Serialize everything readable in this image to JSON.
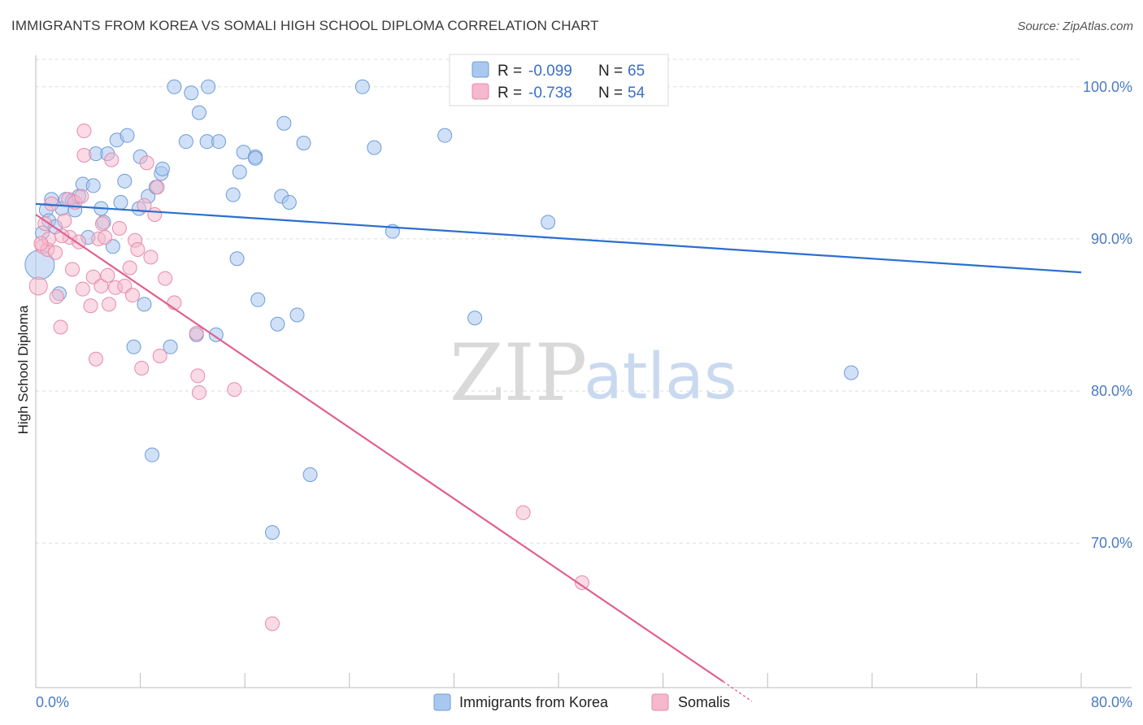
{
  "header": {
    "title": "IMMIGRANTS FROM KOREA VS SOMALI HIGH SCHOOL DIPLOMA CORRELATION CHART",
    "source": "Source: ZipAtlas.com"
  },
  "watermark": {
    "zip": "ZIP",
    "atlas": "atlas"
  },
  "legend": {
    "rows": [
      {
        "r_label": "R =",
        "r_value": "-0.099",
        "n_label": "N =",
        "n_value": "65"
      },
      {
        "r_label": "R =",
        "r_value": "-0.738",
        "n_label": "N =",
        "n_value": "54"
      }
    ]
  },
  "bottom_legend": {
    "korea": "Immigrants from Korea",
    "somalis": "Somalis"
  },
  "colors": {
    "korea_fill": "#a9c8f0",
    "korea_stroke": "#6d9bd8",
    "korea_line": "#2a6fd0",
    "somalis_fill": "#f5b8cc",
    "somalis_stroke": "#e88aa8",
    "somalis_line": "#e0608f",
    "tick_label": "#4a7bc4",
    "grid": "#dddddd"
  },
  "chart_data": {
    "type": "scatter",
    "title": "IMMIGRANTS FROM KOREA VS SOMALI HIGH SCHOOL DIPLOMA CORRELATION CHART",
    "ylabel": "High School Diploma",
    "xlabel": "",
    "xlim": [
      0,
      80
    ],
    "ylim": [
      60.5,
      102.5
    ],
    "x_tick_labels": [
      "0.0%",
      "80.0%"
    ],
    "y_ticks": [
      70,
      80,
      90,
      100
    ],
    "y_tick_labels": [
      "70.0%",
      "80.0%",
      "90.0%",
      "100.0%"
    ],
    "grid": true,
    "legend_position": "top-center",
    "series": [
      {
        "name": "Immigrants from Korea",
        "R": -0.099,
        "N": 65,
        "trend": {
          "x": [
            0,
            80
          ],
          "y": [
            92.3,
            87.8
          ]
        },
        "points": [
          [
            0.3,
            88.3
          ],
          [
            0.5,
            90.4
          ],
          [
            0.8,
            91.9
          ],
          [
            1.0,
            91.2
          ],
          [
            1.2,
            92.6
          ],
          [
            1.5,
            90.8
          ],
          [
            1.8,
            86.4
          ],
          [
            2.0,
            92.0
          ],
          [
            2.3,
            92.6
          ],
          [
            2.8,
            92.5
          ],
          [
            3.0,
            91.9
          ],
          [
            3.3,
            92.8
          ],
          [
            3.6,
            93.6
          ],
          [
            4.0,
            90.1
          ],
          [
            4.4,
            93.5
          ],
          [
            4.6,
            95.6
          ],
          [
            5.0,
            92.0
          ],
          [
            5.2,
            91.1
          ],
          [
            5.5,
            95.6
          ],
          [
            5.9,
            89.5
          ],
          [
            6.2,
            96.5
          ],
          [
            6.5,
            92.4
          ],
          [
            6.8,
            93.8
          ],
          [
            7.0,
            96.8
          ],
          [
            7.5,
            82.9
          ],
          [
            7.9,
            92.0
          ],
          [
            8.0,
            95.4
          ],
          [
            8.3,
            85.7
          ],
          [
            8.6,
            92.8
          ],
          [
            8.9,
            75.8
          ],
          [
            9.2,
            93.4
          ],
          [
            9.6,
            94.3
          ],
          [
            9.7,
            94.6
          ],
          [
            10.3,
            82.9
          ],
          [
            10.6,
            100.0
          ],
          [
            11.5,
            96.4
          ],
          [
            11.9,
            99.6
          ],
          [
            12.3,
            83.7
          ],
          [
            12.5,
            98.3
          ],
          [
            13.2,
            100.0
          ],
          [
            13.1,
            96.4
          ],
          [
            13.8,
            83.7
          ],
          [
            14.0,
            96.4
          ],
          [
            15.1,
            92.9
          ],
          [
            15.4,
            88.7
          ],
          [
            15.6,
            94.4
          ],
          [
            15.9,
            95.7
          ],
          [
            16.8,
            95.4
          ],
          [
            16.8,
            95.3
          ],
          [
            17.0,
            86.0
          ],
          [
            18.1,
            70.7
          ],
          [
            18.5,
            84.4
          ],
          [
            18.8,
            92.8
          ],
          [
            19.0,
            97.6
          ],
          [
            19.4,
            92.4
          ],
          [
            20.0,
            85.0
          ],
          [
            20.5,
            96.3
          ],
          [
            21.0,
            74.5
          ],
          [
            25.0,
            100.0
          ],
          [
            25.9,
            96.0
          ],
          [
            27.3,
            90.5
          ],
          [
            31.3,
            96.8
          ],
          [
            33.6,
            84.8
          ],
          [
            39.2,
            91.1
          ],
          [
            62.4,
            81.2
          ]
        ]
      },
      {
        "name": "Somalis",
        "R": -0.738,
        "N": 54,
        "trend": {
          "x": [
            0,
            52.6
          ],
          "y": [
            91.6,
            60.9
          ]
        },
        "points": [
          [
            0.2,
            86.9
          ],
          [
            0.5,
            89.5
          ],
          [
            0.7,
            91.0
          ],
          [
            0.9,
            89.3
          ],
          [
            1.0,
            90.0
          ],
          [
            1.2,
            92.3
          ],
          [
            1.5,
            89.1
          ],
          [
            1.6,
            86.2
          ],
          [
            1.9,
            84.2
          ],
          [
            2.2,
            91.2
          ],
          [
            2.5,
            92.6
          ],
          [
            2.6,
            90.1
          ],
          [
            2.8,
            88.0
          ],
          [
            3.0,
            92.4
          ],
          [
            3.3,
            89.8
          ],
          [
            3.5,
            92.8
          ],
          [
            3.6,
            86.7
          ],
          [
            3.7,
            97.1
          ],
          [
            3.7,
            95.5
          ],
          [
            4.2,
            85.6
          ],
          [
            4.4,
            87.5
          ],
          [
            4.6,
            82.1
          ],
          [
            4.8,
            90.0
          ],
          [
            5.0,
            86.9
          ],
          [
            5.1,
            91.0
          ],
          [
            5.3,
            90.1
          ],
          [
            5.5,
            87.6
          ],
          [
            5.6,
            85.7
          ],
          [
            5.8,
            95.2
          ],
          [
            6.1,
            86.8
          ],
          [
            6.4,
            90.7
          ],
          [
            6.8,
            86.9
          ],
          [
            7.2,
            88.1
          ],
          [
            7.4,
            86.3
          ],
          [
            7.6,
            89.9
          ],
          [
            7.8,
            89.3
          ],
          [
            8.1,
            81.5
          ],
          [
            8.3,
            92.2
          ],
          [
            8.5,
            95.0
          ],
          [
            8.8,
            88.8
          ],
          [
            9.1,
            91.6
          ],
          [
            9.3,
            93.4
          ],
          [
            9.5,
            82.3
          ],
          [
            9.9,
            87.4
          ],
          [
            10.6,
            85.8
          ],
          [
            12.3,
            83.8
          ],
          [
            12.4,
            81.0
          ],
          [
            12.5,
            79.9
          ],
          [
            15.2,
            80.1
          ],
          [
            18.1,
            64.7
          ],
          [
            37.3,
            72.0
          ],
          [
            41.8,
            67.4
          ],
          [
            0.4,
            89.7
          ],
          [
            2.0,
            90.2
          ]
        ]
      }
    ]
  }
}
